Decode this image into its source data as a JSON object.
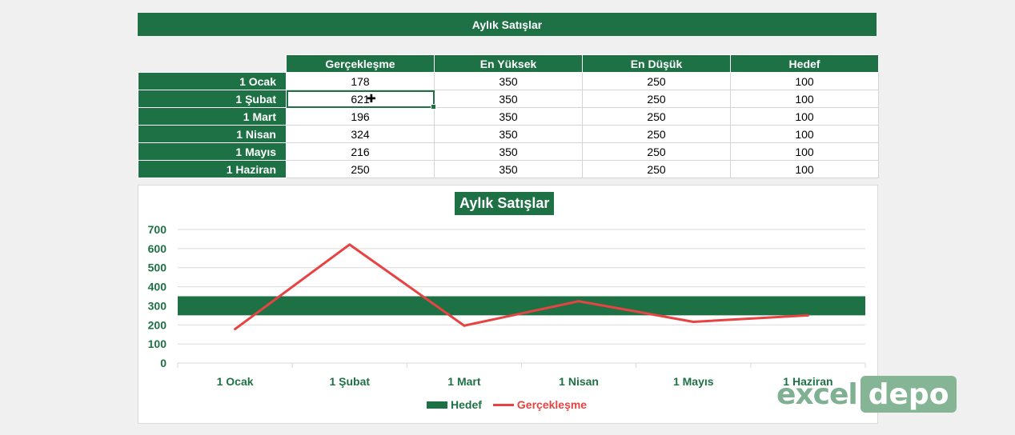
{
  "sheet_title": "Aylık Satışlar",
  "columns": [
    "Gerçekleşme",
    "En Yüksek",
    "En Düşük",
    "Hedef"
  ],
  "rows": [
    {
      "label": "1 Ocak",
      "values": [
        "178",
        "350",
        "250",
        "100"
      ]
    },
    {
      "label": "1 Şubat",
      "values": [
        "621",
        "350",
        "250",
        "100"
      ]
    },
    {
      "label": "1 Mart",
      "values": [
        "196",
        "350",
        "250",
        "100"
      ]
    },
    {
      "label": "1 Nisan",
      "values": [
        "324",
        "350",
        "250",
        "100"
      ]
    },
    {
      "label": "1 Mayıs",
      "values": [
        "216",
        "350",
        "250",
        "100"
      ]
    },
    {
      "label": "1 Haziran",
      "values": [
        "250",
        "350",
        "250",
        "100"
      ]
    }
  ],
  "colors": {
    "green": "#1e7145",
    "red": "#e84343"
  },
  "chart_data": {
    "type": "line",
    "title": "Aylık Satışlar",
    "categories": [
      "1 Ocak",
      "1 Şubat",
      "1 Mart",
      "1 Nisan",
      "1 Mayıs",
      "1 Haziran"
    ],
    "yticks": [
      "0",
      "100",
      "200",
      "300",
      "400",
      "500",
      "600",
      "700"
    ],
    "ylim": [
      0,
      700
    ],
    "band": {
      "name": "Hedef",
      "from": 250,
      "to": 350
    },
    "series": [
      {
        "name": "Gerçekleşme",
        "values": [
          178,
          621,
          196,
          324,
          216,
          250
        ]
      }
    ],
    "legend": [
      "Hedef",
      "Gerçekleşme"
    ],
    "legend_position": "bottom",
    "grid": true
  },
  "logo": {
    "part1": "excel",
    "part2": "depo"
  }
}
